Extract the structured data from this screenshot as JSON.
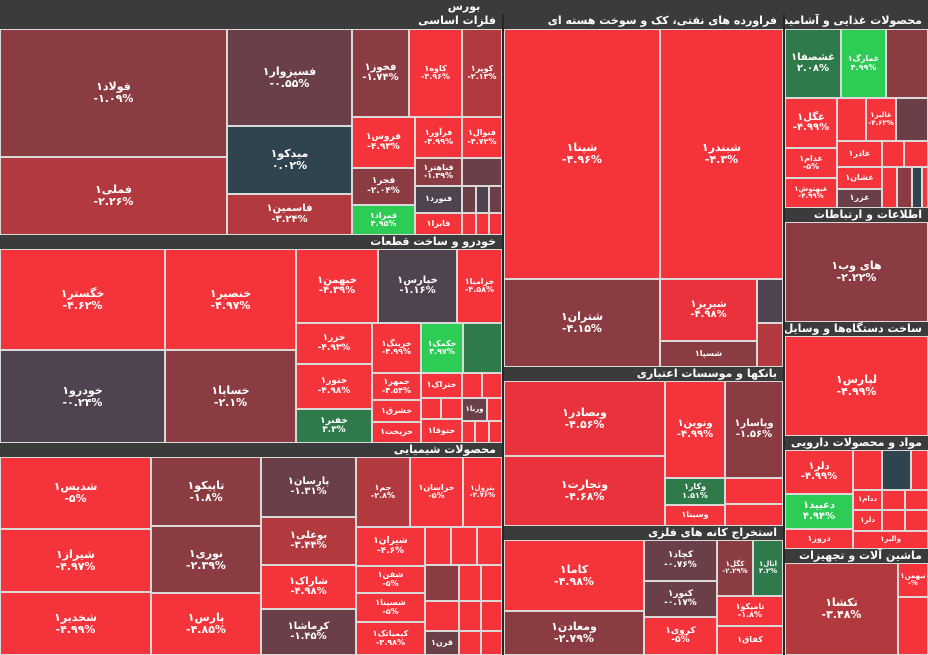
{
  "title": "بورس",
  "sectors": {
    "metals": "فلزات اساسی",
    "oil": "فراورده های نفتی، کک و سوخت هسته ای",
    "food": "محصولات غذایی و آشامیدنی به جز قند",
    "auto": "خودرو و ساخت قطعات",
    "it": "اطلاعات و ارتباطات",
    "comm_devices": "ساخت دستگاه‌ها و وسایل ارتباطی",
    "chem": "محصولات شیمیایی",
    "banks": "بانکها و موسسات اعتباری",
    "pharma": "مواد و محصولات دارویی",
    "mining": "استخراج کانه های فلزی",
    "machinery": "ماشین آلات و تجهیزات"
  },
  "tiles": {
    "foolad": {
      "name": "فولاد۱",
      "change": "-۱.۰۹%"
    },
    "fameli": {
      "name": "فملی۱",
      "change": "-۲.۲۶%"
    },
    "fesezar": {
      "name": "فسپزوار۱",
      "change": "-۰.۵۵%"
    },
    "midko": {
      "name": "میدکو۱",
      "change": "۰.۰۲%"
    },
    "fasmin": {
      "name": "فاسمین۱",
      "change": "-۳.۲۴%"
    },
    "fkhooz": {
      "name": "فخوز۱",
      "change": "-۱.۷۴%"
    },
    "kaveh": {
      "name": "کاوه۱",
      "change": "-۴.۹۶%"
    },
    "kupar": {
      "name": "کوپر۱",
      "change": "-۲.۱۳%"
    },
    "froos": {
      "name": "فروس۱",
      "change": "-۴.۹۳%"
    },
    "fravar": {
      "name": "فرآور۱",
      "change": "-۴.۹۹%"
    },
    "fnoval": {
      "name": "فنوال۱",
      "change": "-۴.۷۲%"
    },
    "fjar": {
      "name": "فجر۱",
      "change": "-۲.۰۴%"
    },
    "fbahonar": {
      "name": "فباهنر۱",
      "change": "-۱.۳۹%"
    },
    "fnoord": {
      "name": "فنورد۱",
      "change": ""
    },
    "famrad": {
      "name": "فمراد۱",
      "change": "۴.۹۵%"
    },
    "fayra": {
      "name": "فایرا۱",
      "change": ""
    },
    "shepna": {
      "name": "شپنا۱",
      "change": "-۴.۹۶%"
    },
    "shebandar": {
      "name": "شبندر۱",
      "change": "-۴.۳%"
    },
    "shetran": {
      "name": "شتران۱",
      "change": "-۴.۱۵%"
    },
    "shebriz": {
      "name": "شبریز۱",
      "change": "-۴.۹۸%"
    },
    "shesepa": {
      "name": "شسپا۱",
      "change": ""
    },
    "ghshesafa": {
      "name": "غشصفا۱",
      "change": "۲.۰۸%"
    },
    "ghamarak": {
      "name": "غمارگ۱",
      "change": "۴.۹۹%"
    },
    "ghgol": {
      "name": "غگل۱",
      "change": "-۴.۹۹%"
    },
    "ghalbor": {
      "name": "غالبر۱",
      "change": "-۴.۶۳%"
    },
    "ghadam": {
      "name": "غدام۱",
      "change": "-۵%"
    },
    "ghazar": {
      "name": "غاذر۱",
      "change": ""
    },
    "ghbehnoosh": {
      "name": "غبهنوش۱",
      "change": "-۴.۹۹%"
    },
    "ghchshan": {
      "name": "غشان۱",
      "change": ""
    },
    "ghazar2": {
      "name": "غزر۱",
      "change": ""
    },
    "khegostar": {
      "name": "خگستر۱",
      "change": "-۴.۶۲%"
    },
    "khenseir": {
      "name": "خنصیر۱",
      "change": "-۴.۹۷%"
    },
    "khebahman": {
      "name": "خبهمن۱",
      "change": "-۴.۳۹%"
    },
    "khepars": {
      "name": "خپارس۱",
      "change": "-۱.۱۶%"
    },
    "khezamia": {
      "name": "خزامیا۱",
      "change": "-۴.۵۸%"
    },
    "khodro": {
      "name": "خودرو۱",
      "change": "-۰.۲۴%"
    },
    "khesapa": {
      "name": "خساپا۱",
      "change": "-۲.۱%"
    },
    "khezar": {
      "name": "خزر۱",
      "change": "-۴.۹۳%"
    },
    "kherink": {
      "name": "خرینگ۱",
      "change": "-۴.۹۹%"
    },
    "khekamak": {
      "name": "خکمک۱",
      "change": "۴.۹۷%"
    },
    "khetoor": {
      "name": "ختور۱",
      "change": "-۴.۹۸%"
    },
    "khemhar": {
      "name": "خمهر۱",
      "change": "-۴.۵۴%"
    },
    "khetrak": {
      "name": "ختراک۱",
      "change": ""
    },
    "khefanar": {
      "name": "خفنر۱",
      "change": "۳.۳%"
    },
    "kheshrag": {
      "name": "خشرق۱",
      "change": ""
    },
    "kheriakht": {
      "name": "خریخت۱",
      "change": ""
    },
    "khetoga": {
      "name": "ختوقا۱",
      "change": ""
    },
    "vernaa": {
      "name": "ورنا۱",
      "change": ""
    },
    "shedis": {
      "name": "شدیس۱",
      "change": "-۵%"
    },
    "shiraz": {
      "name": "شیراز۱",
      "change": "-۴.۹۷%"
    },
    "shekhdir": {
      "name": "شخدیر۱",
      "change": "-۴.۹۹%"
    },
    "tapiko": {
      "name": "تاپیکو۱",
      "change": "-۱.۸%"
    },
    "noori": {
      "name": "نوری۱",
      "change": "-۲.۳۹%"
    },
    "pars": {
      "name": "پارس۱",
      "change": "-۴.۸۵%"
    },
    "parsan": {
      "name": "پارسان۱",
      "change": "-۱.۳۱%"
    },
    "jam": {
      "name": "جم۱",
      "change": "-۲.۸%"
    },
    "khorasan": {
      "name": "خراسان۱",
      "change": "-۵%"
    },
    "petrol": {
      "name": "پترول۱",
      "change": "-۲.۷۶%"
    },
    "booali": {
      "name": "بوعلی۱",
      "change": "-۳.۴۴%"
    },
    "shiran": {
      "name": "شیران۱",
      "change": "-۴.۶%"
    },
    "sharak": {
      "name": "شاراک۱",
      "change": "-۴.۹۸%"
    },
    "shefan": {
      "name": "شفن۱",
      "change": "-۵%"
    },
    "shesina": {
      "name": "شسینا۱",
      "change": "-۵%"
    },
    "kermasha": {
      "name": "کرماشا۱",
      "change": "-۱.۴۵%"
    },
    "kimiatek": {
      "name": "کیمیاتک۱",
      "change": "-۳.۹۸%"
    },
    "qaran": {
      "name": "قرن۱",
      "change": ""
    },
    "hiweb": {
      "name": "های وب۱",
      "change": "-۲.۲۲%"
    },
    "lepars": {
      "name": "لپارس۱",
      "change": "-۴.۹۹%"
    },
    "vebsadar": {
      "name": "وبصادر۱",
      "change": "-۴.۵۶%"
    },
    "vonovin": {
      "name": "ونوین۱",
      "change": "-۴.۹۹%"
    },
    "vepasar": {
      "name": "وپاسار۱",
      "change": "-۱.۵۶%"
    },
    "vetejarat": {
      "name": "وتجارت۱",
      "change": "-۴.۶۸%"
    },
    "vekar": {
      "name": "وکار۱",
      "change": "۱.۵۱%"
    },
    "vesina": {
      "name": "وسینا۱",
      "change": ""
    },
    "dalra": {
      "name": "دلر۱",
      "change": "-۴.۹۹%"
    },
    "dabid": {
      "name": "دعبید۱",
      "change": "۴.۹۴%"
    },
    "dadam": {
      "name": "ددام۱",
      "change": ""
    },
    "dalrou": {
      "name": "دلر۱",
      "change": ""
    },
    "vallira": {
      "name": "والبر۱",
      "change": ""
    },
    "darooz": {
      "name": "دروز۱",
      "change": ""
    },
    "kama": {
      "name": "کاما۱",
      "change": "-۴.۹۸%"
    },
    "kechad": {
      "name": "کچاد۱",
      "change": "-۰.۷۶%"
    },
    "kegol": {
      "name": "کگل۱",
      "change": "-۲.۲۹%"
    },
    "anal": {
      "name": "انال۱",
      "change": "۳.۲%"
    },
    "kenoor": {
      "name": "کنور۱",
      "change": "-۰.۱۷%"
    },
    "vamaden": {
      "name": "ومعادن۱",
      "change": "-۲.۷۹%"
    },
    "keroy": {
      "name": "کروی۱",
      "change": "-۵%"
    },
    "tamepko": {
      "name": "تامپکو۱",
      "change": "-۱.۸%"
    },
    "kafagh": {
      "name": "کفاق۱",
      "change": ""
    },
    "tekasha": {
      "name": "تکشا۱",
      "change": "-۳.۴۸%"
    },
    "tabehmen": {
      "name": "تبهمن۱",
      "change": "-%"
    }
  }
}
